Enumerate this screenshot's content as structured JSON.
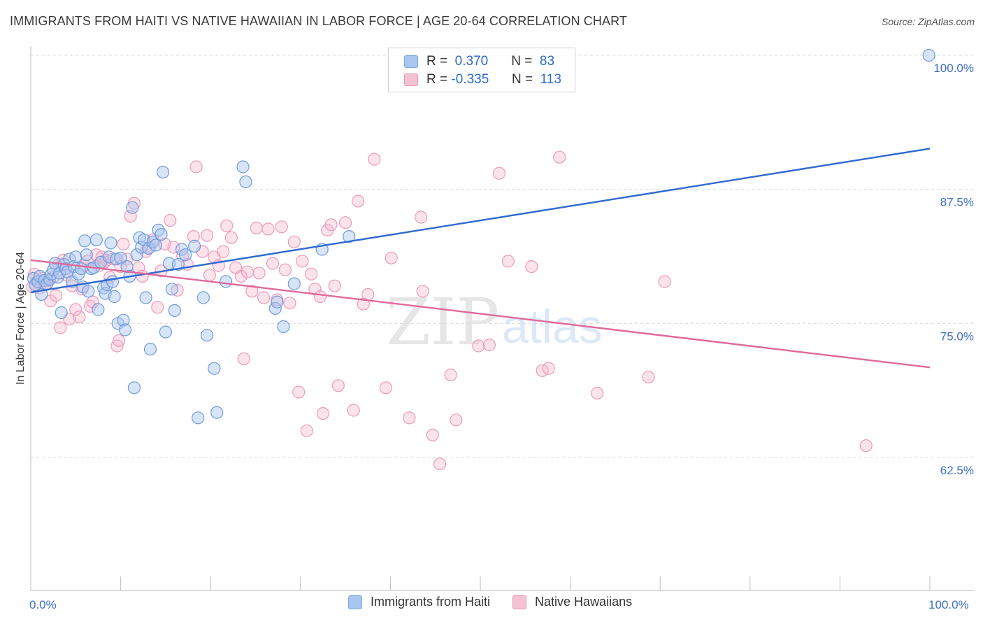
{
  "title": "IMMIGRANTS FROM HAITI VS NATIVE HAWAIIAN IN LABOR FORCE | AGE 20-64 CORRELATION CHART",
  "source": "Source: ZipAtlas.com",
  "colors": {
    "blue": "#2f6ad0",
    "blue_fill": "#a9c6f0",
    "pink": "#e0699a",
    "pink_fill": "#f5b9cf",
    "grid": "#d8d8d8"
  },
  "legend": {
    "rows": [
      {
        "r_label": "R =",
        "r_value": "0.370",
        "n_label": "N =",
        "n_value": "83"
      },
      {
        "r_label": "R =",
        "r_value": "-0.335",
        "n_label": "N =",
        "n_value": "113"
      }
    ]
  },
  "bottom_legend": [
    "Immigrants from Haiti",
    "Native Hawaiians"
  ],
  "watermark": {
    "zip": "ZIP",
    "atlas": "atlas"
  },
  "chart_data": {
    "type": "scatter",
    "xlabel": "",
    "ylabel": "In Labor Force | Age 20-64",
    "xlim": [
      0,
      100
    ],
    "ylim": [
      52,
      101
    ],
    "x_tick_labels": [
      "0.0%",
      "100.0%"
    ],
    "y_ticks": [
      62.5,
      75.0,
      87.5,
      100.0
    ],
    "y_tick_labels": [
      "62.5%",
      "75.0%",
      "87.5%",
      "100.0%"
    ],
    "grid": true,
    "series": [
      {
        "name": "Immigrants from Haiti",
        "color": "#2f6ad0",
        "trend": [
          [
            0,
            77.9
          ],
          [
            100,
            91.3
          ]
        ],
        "points": [
          [
            0.3,
            79.2
          ],
          [
            0.5,
            78.6
          ],
          [
            0.8,
            78.9
          ],
          [
            1.0,
            79.4
          ],
          [
            1.2,
            77.7
          ],
          [
            1.5,
            79.0
          ],
          [
            1.8,
            78.7
          ],
          [
            2.1,
            79.1
          ],
          [
            2.3,
            79.6
          ],
          [
            2.5,
            80.0
          ],
          [
            2.7,
            80.6
          ],
          [
            3.0,
            79.3
          ],
          [
            3.2,
            79.7
          ],
          [
            3.4,
            76.0
          ],
          [
            3.7,
            80.5
          ],
          [
            3.9,
            80.1
          ],
          [
            4.1,
            79.8
          ],
          [
            4.3,
            81.0
          ],
          [
            4.6,
            78.9
          ],
          [
            4.8,
            80.3
          ],
          [
            5.0,
            81.2
          ],
          [
            5.3,
            79.6
          ],
          [
            5.6,
            80.1
          ],
          [
            5.8,
            78.4
          ],
          [
            6.0,
            82.7
          ],
          [
            6.2,
            81.4
          ],
          [
            6.4,
            78.0
          ],
          [
            6.7,
            80.1
          ],
          [
            7.0,
            80.2
          ],
          [
            7.3,
            82.8
          ],
          [
            7.5,
            76.3
          ],
          [
            7.8,
            80.7
          ],
          [
            8.1,
            78.3
          ],
          [
            8.3,
            77.8
          ],
          [
            8.5,
            78.6
          ],
          [
            8.7,
            81.2
          ],
          [
            8.9,
            82.5
          ],
          [
            9.1,
            78.9
          ],
          [
            9.3,
            77.5
          ],
          [
            9.5,
            81.0
          ],
          [
            9.7,
            75.0
          ],
          [
            10.0,
            81.1
          ],
          [
            10.3,
            75.3
          ],
          [
            10.5,
            74.4
          ],
          [
            10.7,
            80.3
          ],
          [
            11.0,
            79.4
          ],
          [
            11.3,
            85.8
          ],
          [
            11.5,
            69.0
          ],
          [
            11.8,
            81.4
          ],
          [
            12.1,
            83.0
          ],
          [
            12.3,
            82.1
          ],
          [
            12.6,
            82.8
          ],
          [
            12.8,
            77.4
          ],
          [
            13.1,
            82.0
          ],
          [
            13.3,
            72.6
          ],
          [
            13.6,
            82.6
          ],
          [
            13.9,
            82.3
          ],
          [
            14.2,
            83.7
          ],
          [
            14.5,
            83.3
          ],
          [
            14.7,
            89.1
          ],
          [
            15.0,
            74.2
          ],
          [
            15.4,
            80.6
          ],
          [
            15.7,
            78.2
          ],
          [
            16.0,
            76.2
          ],
          [
            16.4,
            80.5
          ],
          [
            16.8,
            81.9
          ],
          [
            17.2,
            81.4
          ],
          [
            18.2,
            82.2
          ],
          [
            18.6,
            66.2
          ],
          [
            19.2,
            77.4
          ],
          [
            19.6,
            73.9
          ],
          [
            20.4,
            70.8
          ],
          [
            20.7,
            66.7
          ],
          [
            21.7,
            78.9
          ],
          [
            23.6,
            89.6
          ],
          [
            23.9,
            88.2
          ],
          [
            27.2,
            76.4
          ],
          [
            27.4,
            77.0
          ],
          [
            28.1,
            74.7
          ],
          [
            29.3,
            78.7
          ],
          [
            32.4,
            81.9
          ],
          [
            35.4,
            83.1
          ],
          [
            99.9,
            100.0
          ]
        ]
      },
      {
        "name": "Native Hawaiians",
        "color": "#e0699a",
        "trend": [
          [
            0,
            80.9
          ],
          [
            100,
            70.9
          ]
        ],
        "points": [
          [
            0.2,
            78.4
          ],
          [
            0.4,
            79.6
          ],
          [
            0.7,
            78.9
          ],
          [
            1.0,
            78.3
          ],
          [
            1.3,
            79.2
          ],
          [
            1.6,
            78.6
          ],
          [
            1.9,
            79.0
          ],
          [
            2.2,
            77.1
          ],
          [
            2.5,
            79.3
          ],
          [
            2.8,
            77.6
          ],
          [
            3.1,
            80.5
          ],
          [
            3.3,
            74.6
          ],
          [
            3.6,
            80.9
          ],
          [
            4.0,
            79.5
          ],
          [
            4.3,
            75.4
          ],
          [
            4.6,
            78.5
          ],
          [
            5.0,
            76.3
          ],
          [
            5.4,
            75.6
          ],
          [
            5.7,
            78.2
          ],
          [
            6.0,
            80.4
          ],
          [
            6.3,
            80.8
          ],
          [
            6.6,
            76.6
          ],
          [
            6.9,
            77.0
          ],
          [
            7.3,
            81.4
          ],
          [
            7.6,
            80.4
          ],
          [
            7.9,
            81.2
          ],
          [
            8.2,
            80.7
          ],
          [
            8.4,
            80.9
          ],
          [
            8.8,
            79.3
          ],
          [
            9.2,
            81.0
          ],
          [
            9.6,
            72.9
          ],
          [
            9.8,
            73.4
          ],
          [
            10.0,
            80.3
          ],
          [
            10.3,
            82.4
          ],
          [
            10.7,
            81.0
          ],
          [
            11.1,
            85.0
          ],
          [
            11.5,
            86.2
          ],
          [
            12.0,
            80.2
          ],
          [
            12.4,
            79.4
          ],
          [
            12.8,
            81.7
          ],
          [
            13.2,
            82.1
          ],
          [
            13.6,
            82.8
          ],
          [
            14.1,
            76.5
          ],
          [
            14.5,
            79.9
          ],
          [
            14.9,
            82.4
          ],
          [
            15.5,
            84.6
          ],
          [
            15.9,
            82.1
          ],
          [
            16.3,
            78.1
          ],
          [
            16.9,
            81.3
          ],
          [
            17.4,
            80.5
          ],
          [
            18.1,
            83.1
          ],
          [
            18.4,
            89.6
          ],
          [
            19.1,
            81.7
          ],
          [
            19.6,
            83.2
          ],
          [
            19.9,
            79.5
          ],
          [
            20.4,
            81.2
          ],
          [
            20.9,
            80.4
          ],
          [
            21.4,
            81.7
          ],
          [
            21.8,
            84.1
          ],
          [
            22.3,
            83.0
          ],
          [
            22.8,
            80.2
          ],
          [
            23.4,
            79.4
          ],
          [
            23.7,
            71.7
          ],
          [
            24.1,
            79.8
          ],
          [
            24.6,
            78.0
          ],
          [
            25.1,
            83.9
          ],
          [
            25.4,
            79.7
          ],
          [
            25.9,
            77.4
          ],
          [
            26.4,
            83.8
          ],
          [
            26.9,
            80.6
          ],
          [
            27.4,
            77.2
          ],
          [
            27.9,
            84.0
          ],
          [
            28.3,
            80.0
          ],
          [
            28.8,
            76.9
          ],
          [
            29.3,
            82.6
          ],
          [
            29.8,
            68.6
          ],
          [
            30.2,
            80.8
          ],
          [
            30.7,
            65.0
          ],
          [
            31.2,
            79.6
          ],
          [
            31.6,
            78.2
          ],
          [
            32.2,
            77.5
          ],
          [
            32.5,
            66.6
          ],
          [
            33.0,
            83.7
          ],
          [
            33.4,
            84.2
          ],
          [
            33.8,
            78.5
          ],
          [
            34.2,
            69.2
          ],
          [
            35.0,
            84.4
          ],
          [
            35.9,
            66.9
          ],
          [
            36.4,
            86.4
          ],
          [
            37.0,
            76.8
          ],
          [
            37.5,
            77.7
          ],
          [
            38.2,
            90.3
          ],
          [
            39.5,
            69.0
          ],
          [
            40.1,
            81.1
          ],
          [
            42.1,
            66.2
          ],
          [
            43.4,
            84.9
          ],
          [
            43.6,
            78.0
          ],
          [
            44.7,
            64.6
          ],
          [
            45.5,
            61.9
          ],
          [
            46.7,
            70.2
          ],
          [
            47.3,
            66.0
          ],
          [
            49.8,
            72.9
          ],
          [
            51.0,
            73.0
          ],
          [
            52.1,
            89.0
          ],
          [
            53.1,
            80.8
          ],
          [
            55.7,
            80.3
          ],
          [
            56.9,
            70.6
          ],
          [
            57.6,
            70.8
          ],
          [
            58.8,
            90.5
          ],
          [
            63.0,
            68.5
          ],
          [
            68.7,
            70.0
          ],
          [
            70.5,
            78.9
          ],
          [
            92.9,
            63.6
          ]
        ]
      }
    ]
  }
}
